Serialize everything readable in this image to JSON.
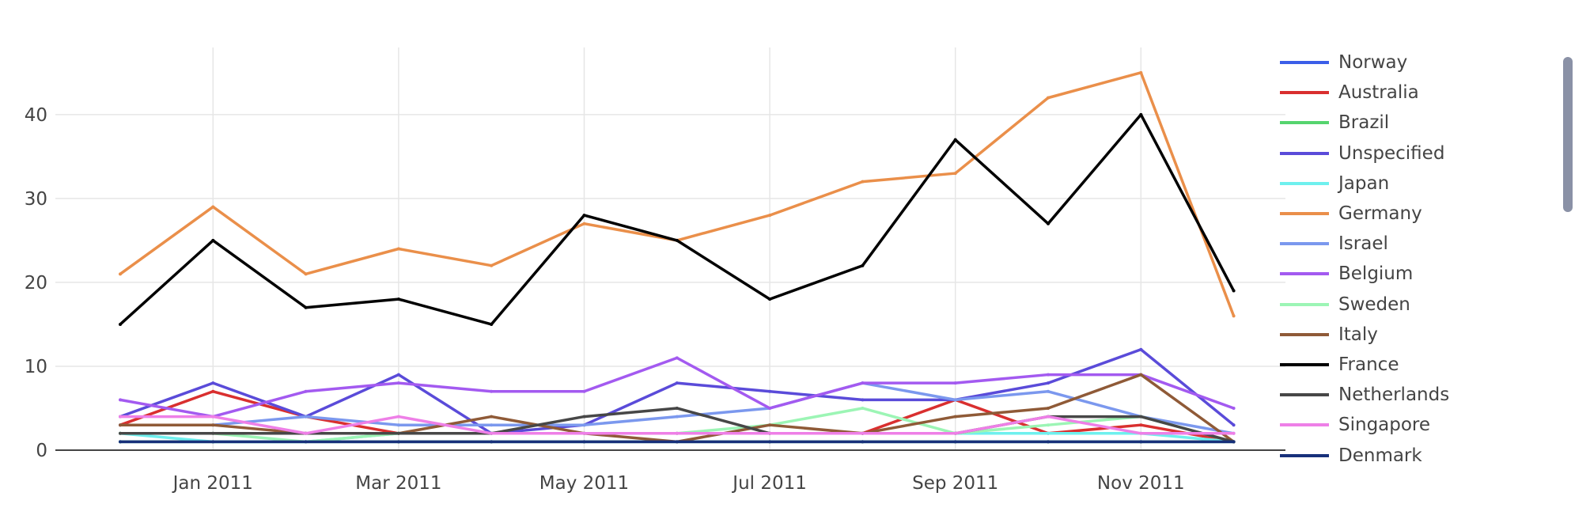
{
  "chart_data": {
    "type": "line",
    "x": [
      "2010-12",
      "2011-01",
      "2011-02",
      "2011-03",
      "2011-04",
      "2011-05",
      "2011-06",
      "2011-07",
      "2011-08",
      "2011-09",
      "2011-10",
      "2011-11",
      "2011-12"
    ],
    "x_tick_labels": [
      "Jan 2011",
      "Mar 2011",
      "May 2011",
      "Jul 2011",
      "Sep 2011",
      "Nov 2011"
    ],
    "x_tick_dates": [
      "2011-01",
      "2011-03",
      "2011-05",
      "2011-07",
      "2011-09",
      "2011-11"
    ],
    "y_tick_labels": [
      "0",
      "10",
      "20",
      "30",
      "40"
    ],
    "ylim": [
      0,
      48
    ],
    "grid": true,
    "legend_placement": "right",
    "series": [
      {
        "name": "Norway",
        "color": "#3b5ee8",
        "values": [
          1,
          1,
          1,
          1,
          1,
          1,
          1,
          1,
          1,
          1,
          1,
          1,
          1
        ]
      },
      {
        "name": "Australia",
        "color": "#d92f2f",
        "values": [
          3,
          7,
          4,
          2,
          2,
          2,
          2,
          2,
          2,
          6,
          2,
          3,
          1
        ]
      },
      {
        "name": "Brazil",
        "color": "#55d46e",
        "values": [
          1,
          1,
          1,
          1,
          1,
          1,
          1,
          1,
          1,
          1,
          1,
          1,
          1
        ]
      },
      {
        "name": "Unspecified",
        "color": "#5a4bd9",
        "values": [
          4,
          8,
          4,
          9,
          2,
          3,
          8,
          7,
          6,
          6,
          8,
          12,
          3
        ]
      },
      {
        "name": "Japan",
        "color": "#6ef0ee",
        "values": [
          2,
          1,
          1,
          2,
          2,
          2,
          2,
          2,
          2,
          2,
          2,
          2,
          1
        ]
      },
      {
        "name": "Germany",
        "color": "#ea8f4a",
        "values": [
          21,
          29,
          21,
          24,
          22,
          27,
          25,
          28,
          32,
          33,
          42,
          45,
          16
        ]
      },
      {
        "name": "Israel",
        "color": "#7b98ee",
        "values": [
          3,
          3,
          4,
          3,
          3,
          3,
          4,
          5,
          8,
          6,
          7,
          4,
          2
        ]
      },
      {
        "name": "Belgium",
        "color": "#a35af0",
        "values": [
          6,
          4,
          7,
          8,
          7,
          7,
          11,
          5,
          8,
          8,
          9,
          9,
          5
        ]
      },
      {
        "name": "Sweden",
        "color": "#9cf5b5",
        "values": [
          2,
          2,
          1,
          2,
          2,
          2,
          2,
          3,
          5,
          2,
          3,
          4,
          1
        ]
      },
      {
        "name": "Italy",
        "color": "#8f5a37",
        "values": [
          3,
          3,
          2,
          2,
          4,
          2,
          1,
          3,
          2,
          4,
          5,
          9,
          1
        ]
      },
      {
        "name": "France",
        "color": "#000000",
        "values": [
          15,
          25,
          17,
          18,
          15,
          28,
          25,
          18,
          22,
          37,
          27,
          40,
          19
        ]
      },
      {
        "name": "Netherlands",
        "color": "#474747",
        "values": [
          2,
          2,
          2,
          2,
          2,
          4,
          5,
          2,
          2,
          2,
          4,
          4,
          1
        ]
      },
      {
        "name": "Singapore",
        "color": "#ee7fe7",
        "values": [
          4,
          4,
          2,
          4,
          2,
          2,
          2,
          2,
          2,
          2,
          4,
          2,
          2
        ]
      },
      {
        "name": "Denmark",
        "color": "#17307a",
        "values": [
          1,
          1,
          1,
          1,
          1,
          1,
          1,
          1,
          1,
          1,
          1,
          1,
          1
        ]
      }
    ]
  }
}
